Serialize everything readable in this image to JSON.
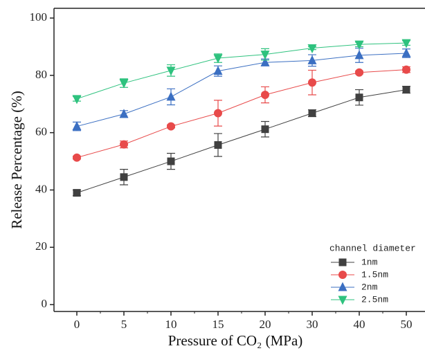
{
  "chart_data": {
    "type": "line",
    "x_label": "Pressure of CO₂ (MPa)",
    "y_label": "Release Percentage (%)",
    "categories": [
      "0",
      "5",
      "10",
      "15",
      "20",
      "30",
      "40",
      "50"
    ],
    "ylim": [
      -2.4,
      103.4
    ],
    "yticks": [
      0,
      20,
      40,
      60,
      80,
      100
    ],
    "legend_title": "channel diameter",
    "legend": "bottom-right",
    "series": [
      {
        "name": "1nm",
        "color": "#404040",
        "marker": "square",
        "values": [
          39,
          44.5,
          50,
          55.7,
          61.2,
          66.8,
          72.3,
          75
        ],
        "errors": [
          1,
          2.7,
          2.8,
          4,
          2.7,
          1.2,
          2.7,
          1.2
        ]
      },
      {
        "name": "1.5nm",
        "color": "#e84a4a",
        "marker": "circle",
        "values": [
          51.3,
          55.9,
          62.2,
          66.8,
          73.2,
          77.5,
          81,
          82
        ],
        "errors": [
          0.5,
          1.2,
          0.5,
          4.5,
          2.8,
          4.3,
          0.5,
          1
        ]
      },
      {
        "name": "2nm",
        "color": "#3b6fc2",
        "marker": "triangle-up",
        "values": [
          62.2,
          66.5,
          72.5,
          81.5,
          84.5,
          85.2,
          87,
          87.7
        ],
        "errors": [
          1.5,
          1.2,
          2.8,
          1.8,
          1.2,
          2,
          2.5,
          1.5
        ]
      },
      {
        "name": "2.5nm",
        "color": "#2ec27e",
        "marker": "triangle-down",
        "values": [
          71.8,
          77.3,
          81.7,
          86,
          87.3,
          89.5,
          90.8,
          91.3
        ],
        "errors": [
          0.8,
          1.5,
          2,
          1.5,
          2,
          0.5,
          0.8,
          0.8
        ]
      }
    ]
  }
}
